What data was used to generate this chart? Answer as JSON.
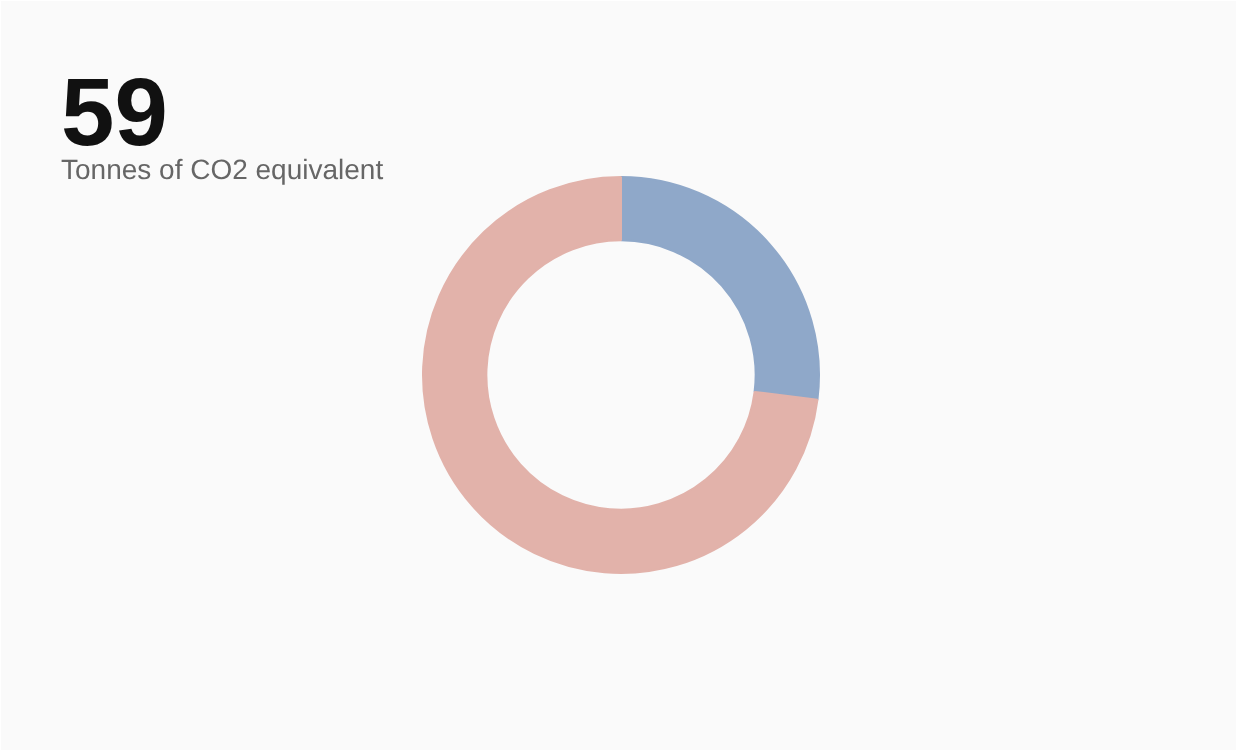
{
  "chart_data": {
    "type": "donut",
    "title": "59",
    "subtitle": "Tonnes of CO2 equivalent",
    "categories": [
      null,
      null
    ],
    "values": [
      27,
      73
    ],
    "colors": [
      "#8fa8c9",
      "#e2b2aa"
    ]
  }
}
